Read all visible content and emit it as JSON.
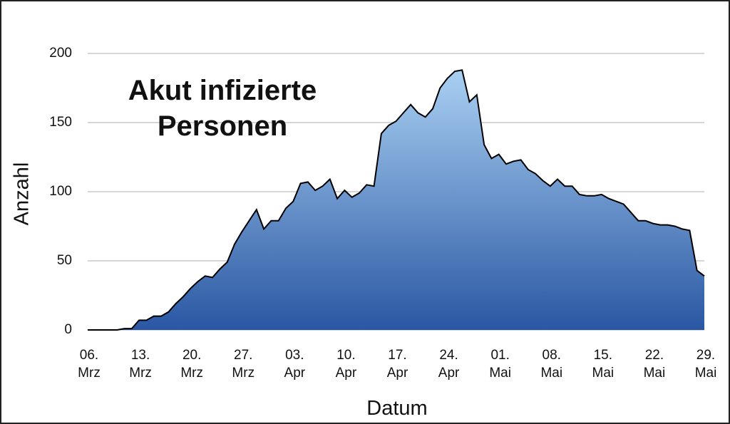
{
  "chart_data": {
    "type": "area",
    "title": "Akut infizierte Personen",
    "x_label": "Datum",
    "y_label": "Anzahl",
    "categories": [
      "06. Mrz",
      null,
      null,
      null,
      null,
      null,
      null,
      "13. Mrz",
      null,
      null,
      null,
      null,
      null,
      null,
      "20. Mrz",
      null,
      null,
      null,
      null,
      null,
      null,
      "27. Mrz",
      null,
      null,
      null,
      null,
      null,
      null,
      "03. Apr",
      null,
      null,
      null,
      null,
      null,
      null,
      "10. Apr",
      null,
      null,
      null,
      null,
      null,
      null,
      "17. Apr",
      null,
      null,
      null,
      null,
      null,
      null,
      "24. Apr",
      null,
      null,
      null,
      null,
      null,
      null,
      "01. Mai",
      null,
      null,
      null,
      null,
      null,
      null,
      "08. Mai",
      null,
      null,
      null,
      null,
      null,
      null,
      "15. Mai",
      null,
      null,
      null,
      null,
      null,
      null,
      "22. Mai",
      null,
      null,
      null,
      null,
      null,
      null,
      "29. Mai"
    ],
    "values": [
      0,
      0,
      0,
      0,
      0,
      1,
      1,
      7,
      7,
      10,
      10,
      13,
      19,
      24,
      30,
      35,
      39,
      38,
      44,
      49,
      62,
      71,
      79,
      87,
      73,
      79,
      79,
      88,
      93,
      106,
      107,
      101,
      104,
      109,
      95,
      101,
      96,
      99,
      105,
      104,
      142,
      148,
      151,
      157,
      163,
      157,
      154,
      160,
      175,
      182,
      187,
      188,
      165,
      170,
      134,
      124,
      127,
      120,
      122,
      123,
      116,
      113,
      108,
      104,
      109,
      104,
      104,
      98,
      97,
      97,
      98,
      95,
      93,
      91,
      85,
      79,
      79,
      77,
      76,
      76,
      75,
      73,
      72,
      43,
      39
    ],
    "color": "#000000",
    "gradient": [
      "#a9d0f2",
      "#2a57a3"
    ],
    "ylim": [
      0,
      200
    ],
    "yticks": [
      0,
      50,
      100,
      150,
      200
    ],
    "grid": true
  }
}
